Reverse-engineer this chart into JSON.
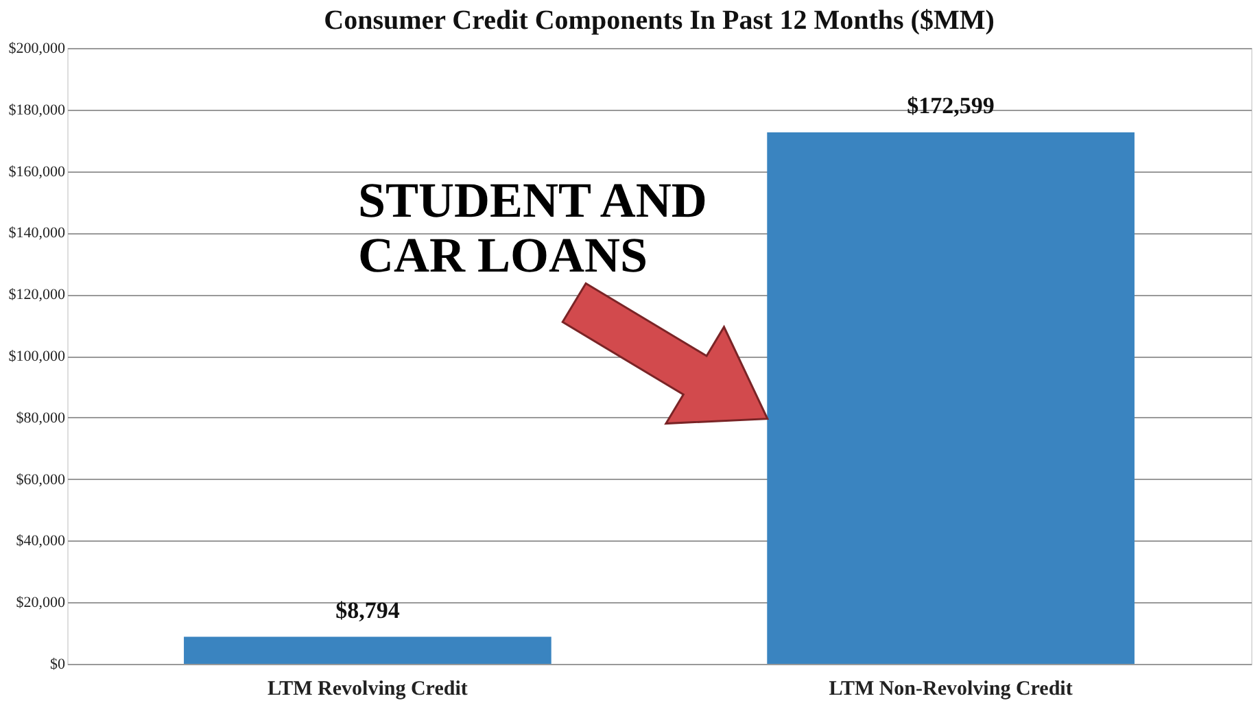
{
  "chart_data": {
    "type": "bar",
    "title": "Consumer Credit Components In Past 12 Months ($MM)",
    "categories": [
      "LTM Revolving Credit",
      "LTM Non-Revolving Credit"
    ],
    "values": [
      8794,
      172599
    ],
    "value_labels": [
      "$8,794",
      "$172,599"
    ],
    "color": "#3a84c0",
    "ylim": [
      0,
      200000
    ],
    "yticks": [
      {
        "value": 0,
        "label": "$0"
      },
      {
        "value": 20000,
        "label": "$20,000"
      },
      {
        "value": 40000,
        "label": "$40,000"
      },
      {
        "value": 60000,
        "label": "$60,000"
      },
      {
        "value": 80000,
        "label": "$80,000"
      },
      {
        "value": 100000,
        "label": "$100,000"
      },
      {
        "value": 120000,
        "label": "$120,000"
      },
      {
        "value": 140000,
        "label": "$140,000"
      },
      {
        "value": 160000,
        "label": "$160,000"
      },
      {
        "value": 180000,
        "label": "$180,000"
      },
      {
        "value": 200000,
        "label": "$200,000"
      }
    ],
    "grid": "y",
    "annotations": [
      "STUDENT AND CAR LOANS"
    ]
  }
}
